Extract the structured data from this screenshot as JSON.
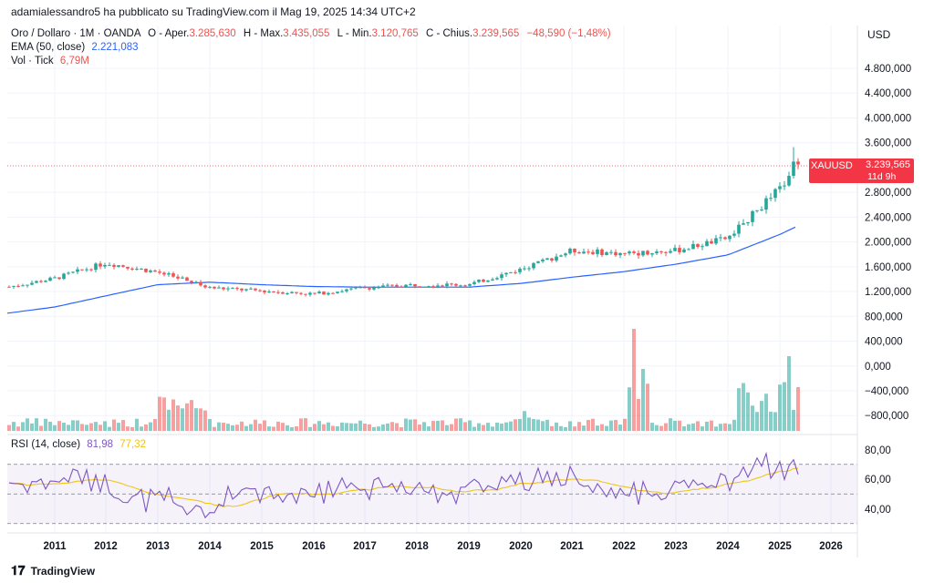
{
  "header": {
    "published": "adamialessandro5 ha pubblicato su TradingView.com il Mag 19, 2025 14:34 UTC+2"
  },
  "legend": {
    "symbol": "Oro / Dollaro · 1M · OANDA",
    "o_label": "O - Aper.",
    "o_value": "3.285,630",
    "h_label": "H - Max.",
    "h_value": "3.435,055",
    "l_label": "L - Min.",
    "l_value": "3.120,765",
    "c_label": "C - Chius.",
    "c_value": "3.239,565",
    "change": "−48,590 (−1,48%)",
    "ema_label": "EMA (50, close)",
    "ema_value": "2.221,083",
    "vol_label": "Vol · Tick",
    "vol_value": "6,79M",
    "rsi_label": "RSI (14, close)",
    "rsi_value": "81,98",
    "rsi_ma_value": "77,32"
  },
  "axis": {
    "currency": "USD",
    "y_labels": [
      "4.800,000",
      "4.400,000",
      "4.000,000",
      "3.600,000",
      "2.800,000",
      "2.400,000",
      "2.000,000",
      "1.600,000",
      "1.200,000",
      "800,000",
      "400,000",
      "0,000",
      "−400,000",
      "−800,000"
    ],
    "rsi_labels": [
      "80,00",
      "60,00",
      "40,00"
    ],
    "x_labels": [
      "2011",
      "2012",
      "2013",
      "2014",
      "2015",
      "2016",
      "2017",
      "2018",
      "2019",
      "2020",
      "2021",
      "2022",
      "2023",
      "2024",
      "2025",
      "2026"
    ]
  },
  "price_tag": {
    "symbol": "XAUUSD",
    "price": "3.239,565",
    "countdown": "11d 9h"
  },
  "footer": {
    "brand": "TradingView"
  },
  "colors": {
    "up": "#26a69a",
    "down": "#ef5350",
    "ema": "#2962ff",
    "rsi": "#7e57c2",
    "rsi_ma": "#f0c419"
  },
  "chart_data": {
    "type": "candlestick",
    "series": [
      {
        "name": "Oro / Dollaro",
        "x": [
          "2011",
          "2012",
          "2013",
          "2014",
          "2015",
          "2016",
          "2017",
          "2018",
          "2019",
          "2020",
          "2021",
          "2022",
          "2023",
          "2024",
          "2025"
        ],
        "values": [
          1400,
          1650,
          1500,
          1250,
          1200,
          1150,
          1250,
          1300,
          1300,
          1550,
          1850,
          1800,
          1850,
          2050,
          2850
        ]
      },
      {
        "name": "EMA (50, close)",
        "x": [
          "2011",
          "2012",
          "2013",
          "2014",
          "2015",
          "2016",
          "2017",
          "2018",
          "2019",
          "2020",
          "2021",
          "2022",
          "2023",
          "2024",
          "2025"
        ],
        "values": [
          940,
          1120,
          1300,
          1340,
          1300,
          1270,
          1260,
          1260,
          1260,
          1320,
          1420,
          1510,
          1630,
          1780,
          2110
        ]
      }
    ],
    "ylim": [
      800,
      4800
    ]
  }
}
